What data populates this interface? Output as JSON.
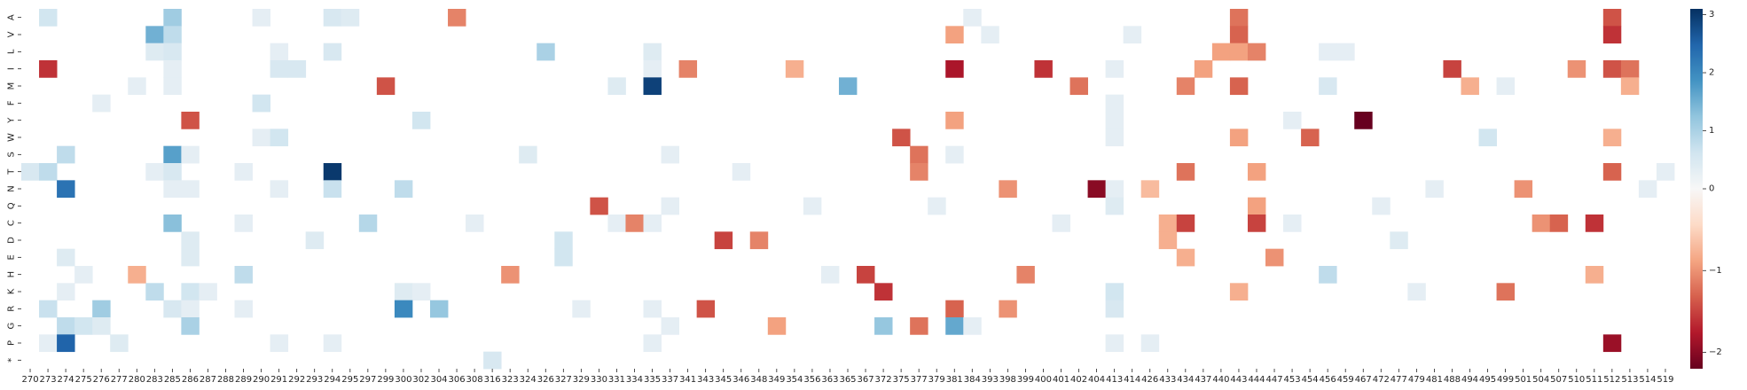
{
  "chart_data": {
    "type": "heatmap",
    "title": "",
    "xlabel": "",
    "ylabel": "",
    "x_labels": [
      "270",
      "273",
      "274",
      "275",
      "276",
      "277",
      "280",
      "283",
      "285",
      "286",
      "287",
      "288",
      "289",
      "290",
      "291",
      "292",
      "293",
      "294",
      "295",
      "297",
      "299",
      "300",
      "302",
      "304",
      "306",
      "308",
      "316",
      "323",
      "324",
      "326",
      "327",
      "329",
      "330",
      "331",
      "334",
      "335",
      "337",
      "341",
      "343",
      "345",
      "346",
      "348",
      "349",
      "354",
      "356",
      "363",
      "365",
      "367",
      "372",
      "375",
      "377",
      "379",
      "381",
      "384",
      "393",
      "398",
      "399",
      "400",
      "401",
      "402",
      "404",
      "413",
      "414",
      "426",
      "433",
      "434",
      "437",
      "440",
      "443",
      "444",
      "447",
      "453",
      "454",
      "456",
      "459",
      "467",
      "472",
      "477",
      "479",
      "481",
      "488",
      "494",
      "495",
      "499",
      "501",
      "504",
      "507",
      "510",
      "511",
      "512",
      "513",
      "514",
      "519"
    ],
    "y_labels": [
      "A",
      "V",
      "L",
      "I",
      "M",
      "F",
      "Y",
      "W",
      "S",
      "T",
      "N",
      "Q",
      "C",
      "D",
      "E",
      "H",
      "K",
      "R",
      "G",
      "P",
      "*"
    ],
    "colorbar": {
      "min": -2.2,
      "max": 3.1,
      "ticks": [
        -2,
        -1,
        0,
        1,
        2,
        3
      ],
      "colormap": "RdBu"
    },
    "cells": [
      [
        "A",
        "273",
        0.6
      ],
      [
        "A",
        "285",
        1.1
      ],
      [
        "A",
        "290",
        0.3
      ],
      [
        "A",
        "294",
        0.5
      ],
      [
        "A",
        "295",
        0.4
      ],
      [
        "A",
        "306",
        -1.1
      ],
      [
        "A",
        "384",
        0.3
      ],
      [
        "A",
        "443",
        -1.2
      ],
      [
        "A",
        "512",
        -1.4
      ],
      [
        "V",
        "283",
        1.5
      ],
      [
        "V",
        "285",
        0.8
      ],
      [
        "V",
        "381",
        -0.9
      ],
      [
        "V",
        "393",
        0.3
      ],
      [
        "V",
        "414",
        0.3
      ],
      [
        "V",
        "443",
        -1.3
      ],
      [
        "V",
        "512",
        -1.6
      ],
      [
        "L",
        "283",
        0.4
      ],
      [
        "L",
        "285",
        0.5
      ],
      [
        "L",
        "291",
        0.3
      ],
      [
        "L",
        "294",
        0.5
      ],
      [
        "L",
        "326",
        1.0
      ],
      [
        "L",
        "335",
        0.4
      ],
      [
        "L",
        "440",
        -0.9
      ],
      [
        "L",
        "443",
        -0.9
      ],
      [
        "L",
        "444",
        -1.1
      ],
      [
        "L",
        "456",
        0.3
      ],
      [
        "L",
        "459",
        0.3
      ],
      [
        "I",
        "273",
        -1.6
      ],
      [
        "I",
        "285",
        0.3
      ],
      [
        "I",
        "291",
        0.5
      ],
      [
        "I",
        "292",
        0.5
      ],
      [
        "I",
        "335",
        0.3
      ],
      [
        "I",
        "341",
        -1.1
      ],
      [
        "I",
        "354",
        -0.8
      ],
      [
        "I",
        "381",
        -1.8
      ],
      [
        "I",
        "400",
        -1.6
      ],
      [
        "I",
        "413",
        0.3
      ],
      [
        "I",
        "437",
        -0.9
      ],
      [
        "I",
        "488",
        -1.5
      ],
      [
        "I",
        "510",
        -1.0
      ],
      [
        "I",
        "512",
        -1.4
      ],
      [
        "I",
        "513",
        -1.2
      ],
      [
        "M",
        "280",
        0.3
      ],
      [
        "M",
        "285",
        0.3
      ],
      [
        "M",
        "299",
        -1.4
      ],
      [
        "M",
        "331",
        0.4
      ],
      [
        "M",
        "335",
        2.9
      ],
      [
        "M",
        "365",
        1.5
      ],
      [
        "M",
        "402",
        -1.2
      ],
      [
        "M",
        "434",
        -1.1
      ],
      [
        "M",
        "443",
        -1.3
      ],
      [
        "M",
        "456",
        0.5
      ],
      [
        "M",
        "494",
        -0.8
      ],
      [
        "M",
        "499",
        0.3
      ],
      [
        "M",
        "513",
        -0.8
      ],
      [
        "F",
        "276",
        0.3
      ],
      [
        "F",
        "290",
        0.6
      ],
      [
        "F",
        "413",
        0.3
      ],
      [
        "Y",
        "286",
        -1.4
      ],
      [
        "Y",
        "302",
        0.6
      ],
      [
        "Y",
        "381",
        -0.9
      ],
      [
        "Y",
        "413",
        0.3
      ],
      [
        "Y",
        "453",
        0.3
      ],
      [
        "Y",
        "467",
        -2.2
      ],
      [
        "W",
        "290",
        0.3
      ],
      [
        "W",
        "291",
        0.6
      ],
      [
        "W",
        "375",
        -1.4
      ],
      [
        "W",
        "413",
        0.3
      ],
      [
        "W",
        "443",
        -0.9
      ],
      [
        "W",
        "454",
        -1.3
      ],
      [
        "W",
        "495",
        0.6
      ],
      [
        "W",
        "512",
        -0.8
      ],
      [
        "S",
        "274",
        0.8
      ],
      [
        "S",
        "285",
        1.7
      ],
      [
        "S",
        "286",
        0.3
      ],
      [
        "S",
        "324",
        0.4
      ],
      [
        "S",
        "337",
        0.3
      ],
      [
        "S",
        "377",
        -1.2
      ],
      [
        "S",
        "381",
        0.3
      ],
      [
        "T",
        "270",
        0.5
      ],
      [
        "T",
        "273",
        0.8
      ],
      [
        "T",
        "283",
        0.3
      ],
      [
        "T",
        "285",
        0.5
      ],
      [
        "T",
        "289",
        0.3
      ],
      [
        "T",
        "294",
        3.0
      ],
      [
        "T",
        "346",
        0.3
      ],
      [
        "T",
        "377",
        -1.1
      ],
      [
        "T",
        "434",
        -1.2
      ],
      [
        "T",
        "444",
        -0.9
      ],
      [
        "T",
        "512",
        -1.3
      ],
      [
        "T",
        "519",
        0.3
      ],
      [
        "N",
        "274",
        2.3
      ],
      [
        "N",
        "285",
        0.3
      ],
      [
        "N",
        "286",
        0.3
      ],
      [
        "N",
        "291",
        0.3
      ],
      [
        "N",
        "294",
        0.7
      ],
      [
        "N",
        "300",
        0.8
      ],
      [
        "N",
        "398",
        -1.0
      ],
      [
        "N",
        "404",
        -2.0
      ],
      [
        "N",
        "413",
        0.3
      ],
      [
        "N",
        "426",
        -0.7
      ],
      [
        "N",
        "481",
        0.3
      ],
      [
        "N",
        "501",
        -1.0
      ],
      [
        "N",
        "514",
        0.3
      ],
      [
        "Q",
        "330",
        -1.4
      ],
      [
        "Q",
        "337",
        0.3
      ],
      [
        "Q",
        "356",
        0.3
      ],
      [
        "Q",
        "379",
        0.3
      ],
      [
        "Q",
        "413",
        0.4
      ],
      [
        "Q",
        "444",
        -0.9
      ],
      [
        "Q",
        "472",
        0.3
      ],
      [
        "C",
        "285",
        1.3
      ],
      [
        "C",
        "289",
        0.3
      ],
      [
        "C",
        "297",
        0.9
      ],
      [
        "C",
        "308",
        0.3
      ],
      [
        "C",
        "331",
        0.3
      ],
      [
        "C",
        "334",
        -1.1
      ],
      [
        "C",
        "335",
        0.3
      ],
      [
        "C",
        "401",
        0.3
      ],
      [
        "C",
        "433",
        -0.8
      ],
      [
        "C",
        "434",
        -1.5
      ],
      [
        "C",
        "444",
        -1.5
      ],
      [
        "C",
        "453",
        0.3
      ],
      [
        "C",
        "504",
        -1.0
      ],
      [
        "C",
        "507",
        -1.3
      ],
      [
        "C",
        "511",
        -1.6
      ],
      [
        "D",
        "286",
        0.4
      ],
      [
        "D",
        "293",
        0.4
      ],
      [
        "D",
        "327",
        0.6
      ],
      [
        "D",
        "345",
        -1.5
      ],
      [
        "D",
        "348",
        -1.1
      ],
      [
        "D",
        "433",
        -0.8
      ],
      [
        "D",
        "477",
        0.4
      ],
      [
        "E",
        "274",
        0.4
      ],
      [
        "E",
        "286",
        0.4
      ],
      [
        "E",
        "327",
        0.6
      ],
      [
        "E",
        "434",
        -0.8
      ],
      [
        "E",
        "447",
        -1.0
      ],
      [
        "H",
        "275",
        0.3
      ],
      [
        "H",
        "280",
        -0.8
      ],
      [
        "H",
        "289",
        0.8
      ],
      [
        "H",
        "323",
        -1.0
      ],
      [
        "H",
        "363",
        0.3
      ],
      [
        "H",
        "367",
        -1.5
      ],
      [
        "H",
        "399",
        -1.1
      ],
      [
        "H",
        "456",
        0.8
      ],
      [
        "H",
        "511",
        -0.8
      ],
      [
        "K",
        "274",
        0.3
      ],
      [
        "K",
        "283",
        0.8
      ],
      [
        "K",
        "286",
        0.6
      ],
      [
        "K",
        "287",
        0.3
      ],
      [
        "K",
        "300",
        0.4
      ],
      [
        "K",
        "302",
        0.3
      ],
      [
        "K",
        "372",
        -1.6
      ],
      [
        "K",
        "413",
        0.6
      ],
      [
        "K",
        "443",
        -0.8
      ],
      [
        "K",
        "479",
        0.3
      ],
      [
        "K",
        "499",
        -1.2
      ],
      [
        "R",
        "273",
        0.7
      ],
      [
        "R",
        "276",
        1.1
      ],
      [
        "R",
        "285",
        0.5
      ],
      [
        "R",
        "286",
        0.3
      ],
      [
        "R",
        "289",
        0.3
      ],
      [
        "R",
        "300",
        2.0
      ],
      [
        "R",
        "304",
        1.2
      ],
      [
        "R",
        "329",
        0.3
      ],
      [
        "R",
        "335",
        0.3
      ],
      [
        "R",
        "343",
        -1.4
      ],
      [
        "R",
        "381",
        -1.3
      ],
      [
        "R",
        "398",
        -1.0
      ],
      [
        "R",
        "413",
        0.5
      ],
      [
        "G",
        "274",
        0.8
      ],
      [
        "G",
        "275",
        0.6
      ],
      [
        "G",
        "276",
        0.4
      ],
      [
        "G",
        "286",
        1.0
      ],
      [
        "G",
        "337",
        0.3
      ],
      [
        "G",
        "349",
        -0.9
      ],
      [
        "G",
        "372",
        1.2
      ],
      [
        "G",
        "377",
        -1.2
      ],
      [
        "G",
        "381",
        1.6
      ],
      [
        "G",
        "384",
        0.3
      ],
      [
        "P",
        "273",
        0.3
      ],
      [
        "P",
        "274",
        2.5
      ],
      [
        "P",
        "277",
        0.4
      ],
      [
        "P",
        "291",
        0.3
      ],
      [
        "P",
        "294",
        0.3
      ],
      [
        "P",
        "335",
        0.3
      ],
      [
        "P",
        "413",
        0.3
      ],
      [
        "P",
        "426",
        0.3
      ],
      [
        "P",
        "512",
        -1.9
      ],
      [
        "*",
        "316",
        0.5
      ]
    ]
  }
}
